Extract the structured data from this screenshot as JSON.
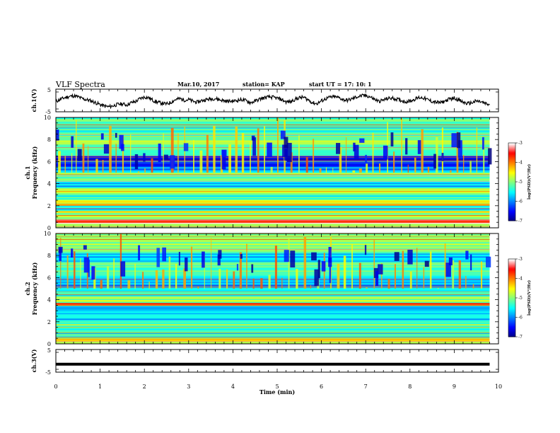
{
  "header": {
    "title": "VLF Spectra",
    "date": "Mar.10, 2017",
    "station": "station= KAP",
    "start_time": "start  UT  =   17: 10: 1"
  },
  "chart_data": [
    {
      "id": "ch1_voltage",
      "type": "line",
      "ylabel": "ch.1(V)",
      "ylim": [
        -5,
        5
      ],
      "yticks": [
        "5",
        "-5"
      ],
      "xlim": [
        0,
        10
      ],
      "x_extent": [
        0,
        9.8
      ],
      "series": [
        {
          "color": "#000000",
          "x": [
            0,
            0.1,
            0.2,
            0.3,
            0.4,
            0.5,
            0.6,
            0.7,
            0.8,
            0.9,
            1.0,
            1.1,
            1.2,
            1.3,
            1.4,
            1.5,
            1.6,
            1.7,
            1.8,
            1.9,
            2.0,
            2.1,
            2.2,
            2.3,
            2.4,
            2.5,
            2.6,
            2.7,
            2.8,
            2.9,
            3.0,
            3.1,
            3.2,
            3.3,
            3.4,
            3.5,
            3.6,
            3.7,
            3.8,
            3.9,
            4.0,
            4.1,
            4.2,
            4.3,
            4.4,
            4.5,
            4.6,
            4.7,
            4.8,
            4.9,
            5.0,
            5.1,
            5.2,
            5.3,
            5.4,
            5.5,
            5.6,
            5.7,
            5.8,
            5.9,
            6.0,
            6.1,
            6.2,
            6.3,
            6.4,
            6.5,
            6.6,
            6.7,
            6.8,
            6.9,
            7.0,
            7.1,
            7.2,
            7.3,
            7.4,
            7.5,
            7.6,
            7.7,
            7.8,
            7.9,
            8.0,
            8.1,
            8.2,
            8.3,
            8.4,
            8.5,
            8.6,
            8.7,
            8.8,
            8.9,
            9.0,
            9.1,
            9.2,
            9.3,
            9.4,
            9.5,
            9.6,
            9.7,
            9.8
          ],
          "values": [
            -0.5,
            0.5,
            1.2,
            1.8,
            2.0,
            1.6,
            0.8,
            0.3,
            -0.2,
            -1.0,
            -1.8,
            -2.5,
            -2.8,
            -2.3,
            -1.7,
            -1.5,
            -2.0,
            -1.0,
            -0.5,
            0.8,
            1.5,
            1.2,
            0.0,
            -0.8,
            -1.2,
            -1.6,
            -0.8,
            0.4,
            0.8,
            0.2,
            0.4,
            -0.4,
            -0.8,
            0.0,
            0.4,
            0.7,
            0.9,
            0.3,
            -0.1,
            -0.4,
            -0.3,
            0.0,
            0.4,
            -0.1,
            -1.0,
            -0.3,
            0.6,
            1.1,
            1.5,
            1.4,
            1.0,
            0.4,
            -0.6,
            -0.6,
            0.5,
            1.2,
            1.4,
            0.3,
            -1.0,
            -1.4,
            -0.2,
            0.8,
            1.4,
            1.6,
            1.2,
            0.3,
            0.1,
            0.8,
            1.6,
            2.0,
            2.2,
            1.6,
            0.5,
            -0.4,
            0.2,
            0.9,
            1.0,
            0.6,
            0.0,
            -0.5,
            -0.3,
            0.5,
            1.3,
            1.2,
            0.3,
            -0.4,
            -0.8,
            -1.0,
            -0.2,
            0.7,
            1.1,
            0.2,
            -0.8,
            -1.4,
            -1.0,
            -0.3,
            -0.6,
            -1.4,
            -2.0
          ]
        }
      ]
    },
    {
      "id": "ch1_spectrogram",
      "type": "heatmap",
      "ylabel": "ch.1\nFrequency (kHz)",
      "ylabel_line1": "ch.1",
      "ylabel_line2": "Frequency (kHz)",
      "ylim": [
        0,
        10
      ],
      "yticks": [
        "0",
        "2",
        "4",
        "6",
        "8",
        "10"
      ],
      "xlim": [
        0,
        10
      ],
      "x_extent": [
        0,
        9.8
      ],
      "colorbar": {
        "label": "log(PSD)(V²/Hz)",
        "range": [
          -7,
          -3
        ],
        "ticks": [
          "-3",
          "-4",
          "-5",
          "-6",
          "-7"
        ],
        "colormap": [
          "#000080",
          "#0000ff",
          "#0080ff",
          "#00ffff",
          "#80ff80",
          "#ffff00",
          "#ff8000",
          "#ff0000",
          "#ffffff"
        ]
      },
      "bands": [
        {
          "from": 0,
          "to": 0.4,
          "level": -4.8
        },
        {
          "from": 0.4,
          "to": 0.8,
          "level": -3.4
        },
        {
          "from": 0.8,
          "to": 1.5,
          "level": -4.8
        },
        {
          "from": 1.5,
          "to": 2.0,
          "level": -5.6
        },
        {
          "from": 2.0,
          "to": 2.6,
          "level": -4.6
        },
        {
          "from": 2.6,
          "to": 3.0,
          "level": -5.4
        },
        {
          "from": 3.0,
          "to": 3.6,
          "level": -4.8
        },
        {
          "from": 3.6,
          "to": 4.2,
          "level": -5.6
        },
        {
          "from": 4.2,
          "to": 5.0,
          "level": -5.0
        },
        {
          "from": 5.0,
          "to": 5.5,
          "level": -5.8
        },
        {
          "from": 5.5,
          "to": 6.5,
          "level": -6.4
        },
        {
          "from": 6.5,
          "to": 8.0,
          "level": -5.0
        },
        {
          "from": 8.0,
          "to": 10.0,
          "level": -5.2
        }
      ],
      "bursts": [
        0.05,
        0.2,
        0.35,
        0.45,
        0.6,
        0.72,
        0.9,
        1.05,
        1.2,
        1.35,
        1.5,
        1.68,
        1.85,
        2.0,
        2.15,
        2.3,
        2.42,
        2.6,
        2.75,
        2.9,
        3.1,
        3.25,
        3.4,
        3.55,
        3.72,
        3.9,
        4.05,
        4.2,
        4.38,
        4.55,
        4.7,
        4.85,
        5.0,
        5.15,
        5.3,
        5.48,
        5.65,
        5.8,
        5.95,
        6.1,
        6.25,
        6.4,
        6.55,
        6.7,
        6.85,
        7.0,
        7.15,
        7.3,
        7.48,
        7.62,
        7.8,
        7.95,
        8.1,
        8.25,
        8.4,
        8.58,
        8.72,
        8.9,
        9.05,
        9.2,
        9.35,
        9.5,
        9.65
      ]
    },
    {
      "id": "ch2_spectrogram",
      "type": "heatmap",
      "ylabel": "ch.2\nFrequency (kHz)",
      "ylabel_line1": "ch.2",
      "ylabel_line2": "Frequency (kHz)",
      "ylim": [
        0,
        10
      ],
      "yticks": [
        "0",
        "2",
        "4",
        "6",
        "8",
        "10"
      ],
      "xlim": [
        0,
        10
      ],
      "x_extent": [
        0,
        9.8
      ],
      "colorbar": {
        "label": "log(PSD)(V²/Hz)",
        "range": [
          -7,
          -3
        ],
        "ticks": [
          "-3",
          "-4",
          "-5",
          "-6",
          "-7"
        ],
        "colormap": [
          "#000080",
          "#0000ff",
          "#0080ff",
          "#00ffff",
          "#80ff80",
          "#ffff00",
          "#ff8000",
          "#ff0000",
          "#ffffff"
        ]
      },
      "bands": [
        {
          "from": 0,
          "to": 0.5,
          "level": -4.6
        },
        {
          "from": 0.5,
          "to": 1.5,
          "level": -5.4
        },
        {
          "from": 1.5,
          "to": 2.2,
          "level": -5.0
        },
        {
          "from": 2.2,
          "to": 3.4,
          "level": -5.6
        },
        {
          "from": 3.4,
          "to": 3.7,
          "level": -3.6
        },
        {
          "from": 3.7,
          "to": 4.4,
          "level": -4.8
        },
        {
          "from": 4.4,
          "to": 5.2,
          "level": -5.4
        },
        {
          "from": 5.2,
          "to": 6.0,
          "level": -5.8
        },
        {
          "from": 6.0,
          "to": 7.4,
          "level": -5.2
        },
        {
          "from": 7.4,
          "to": 8.2,
          "level": -5.6
        },
        {
          "from": 8.2,
          "to": 10.0,
          "level": -5.0
        }
      ],
      "bursts": [
        0.1,
        0.25,
        0.4,
        0.55,
        0.7,
        0.85,
        1.0,
        1.15,
        1.3,
        1.45,
        1.62,
        1.78,
        1.95,
        2.1,
        2.25,
        2.4,
        2.55,
        2.7,
        2.88,
        3.05,
        3.2,
        3.35,
        3.5,
        3.68,
        3.85,
        4.0,
        4.15,
        4.3,
        4.45,
        4.62,
        4.8,
        4.95,
        5.1,
        5.25,
        5.42,
        5.6,
        5.75,
        5.9,
        6.05,
        6.2,
        6.35,
        6.5,
        6.68,
        6.85,
        7.0,
        7.18,
        7.35,
        7.5,
        7.65,
        7.82,
        8.0,
        8.15,
        8.3,
        8.45,
        8.62,
        8.78,
        8.95,
        9.1,
        9.25,
        9.42,
        9.6
      ]
    },
    {
      "id": "ch3_voltage",
      "type": "line",
      "ylabel": "ch.3(V)",
      "ylim": [
        -5,
        5
      ],
      "yticks": [
        "5",
        "-5"
      ],
      "xlim": [
        0,
        10
      ],
      "x_extent": [
        0,
        9.8
      ],
      "xlabel": "Time  (min)",
      "xticks": [
        "0",
        "1",
        "2",
        "3",
        "4",
        "5",
        "6",
        "7",
        "8",
        "9",
        "10"
      ],
      "series": [
        {
          "color": "#000000",
          "x": [
            0,
            9.8
          ],
          "values": [
            -1.5,
            -1.5
          ]
        }
      ]
    }
  ]
}
